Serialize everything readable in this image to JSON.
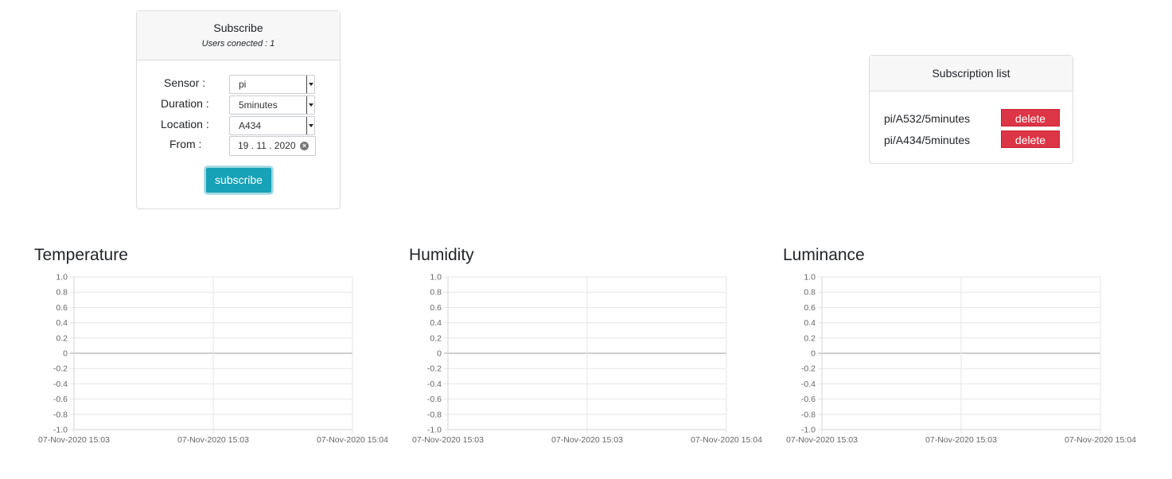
{
  "subscribe_card": {
    "title": "Subscribe",
    "users_connected": "Users conected : 1",
    "sensor_label": "Sensor :",
    "sensor_value": "pi",
    "duration_label": "Duration :",
    "duration_value": "5minutes",
    "location_label": "Location :",
    "location_value": "A434",
    "from_label": "From :",
    "from_value": "19 . 11 . 2020",
    "subscribe_button": "subscribe"
  },
  "subscription_list": {
    "title": "Subscription list",
    "items": [
      {
        "label": "pi/A532/5minutes",
        "delete_label": "delete"
      },
      {
        "label": "pi/A434/5minutes",
        "delete_label": "delete"
      }
    ]
  },
  "colors": {
    "subscribe_button": "#17a2b8",
    "delete_button": "#dc3545",
    "grid": "#e6e6e6",
    "tick_text": "#666666"
  },
  "chart_data": [
    {
      "type": "line",
      "title": "Temperature",
      "x_ticks": [
        "07-Nov-2020 15:03",
        "07-Nov-2020 15:03",
        "07-Nov-2020 15:04"
      ],
      "y_ticks": [
        "1.0",
        "0.8",
        "0.6",
        "0.4",
        "0.2",
        "0",
        "-0.2",
        "-0.4",
        "-0.6",
        "-0.8",
        "-1.0"
      ],
      "ylim": [
        -1.0,
        1.0
      ],
      "series": [],
      "grid": true
    },
    {
      "type": "line",
      "title": "Humidity",
      "x_ticks": [
        "07-Nov-2020 15:03",
        "07-Nov-2020 15:03",
        "07-Nov-2020 15:04"
      ],
      "y_ticks": [
        "1.0",
        "0.8",
        "0.6",
        "0.4",
        "0.2",
        "0",
        "-0.2",
        "-0.4",
        "-0.6",
        "-0.8",
        "-1.0"
      ],
      "ylim": [
        -1.0,
        1.0
      ],
      "series": [],
      "grid": true
    },
    {
      "type": "line",
      "title": "Luminance",
      "x_ticks": [
        "07-Nov-2020 15:03",
        "07-Nov-2020 15:03",
        "07-Nov-2020 15:04"
      ],
      "y_ticks": [
        "1.0",
        "0.8",
        "0.6",
        "0.4",
        "0.2",
        "0",
        "-0.2",
        "-0.4",
        "-0.6",
        "-0.8",
        "-1.0"
      ],
      "ylim": [
        -1.0,
        1.0
      ],
      "series": [],
      "grid": true
    }
  ]
}
